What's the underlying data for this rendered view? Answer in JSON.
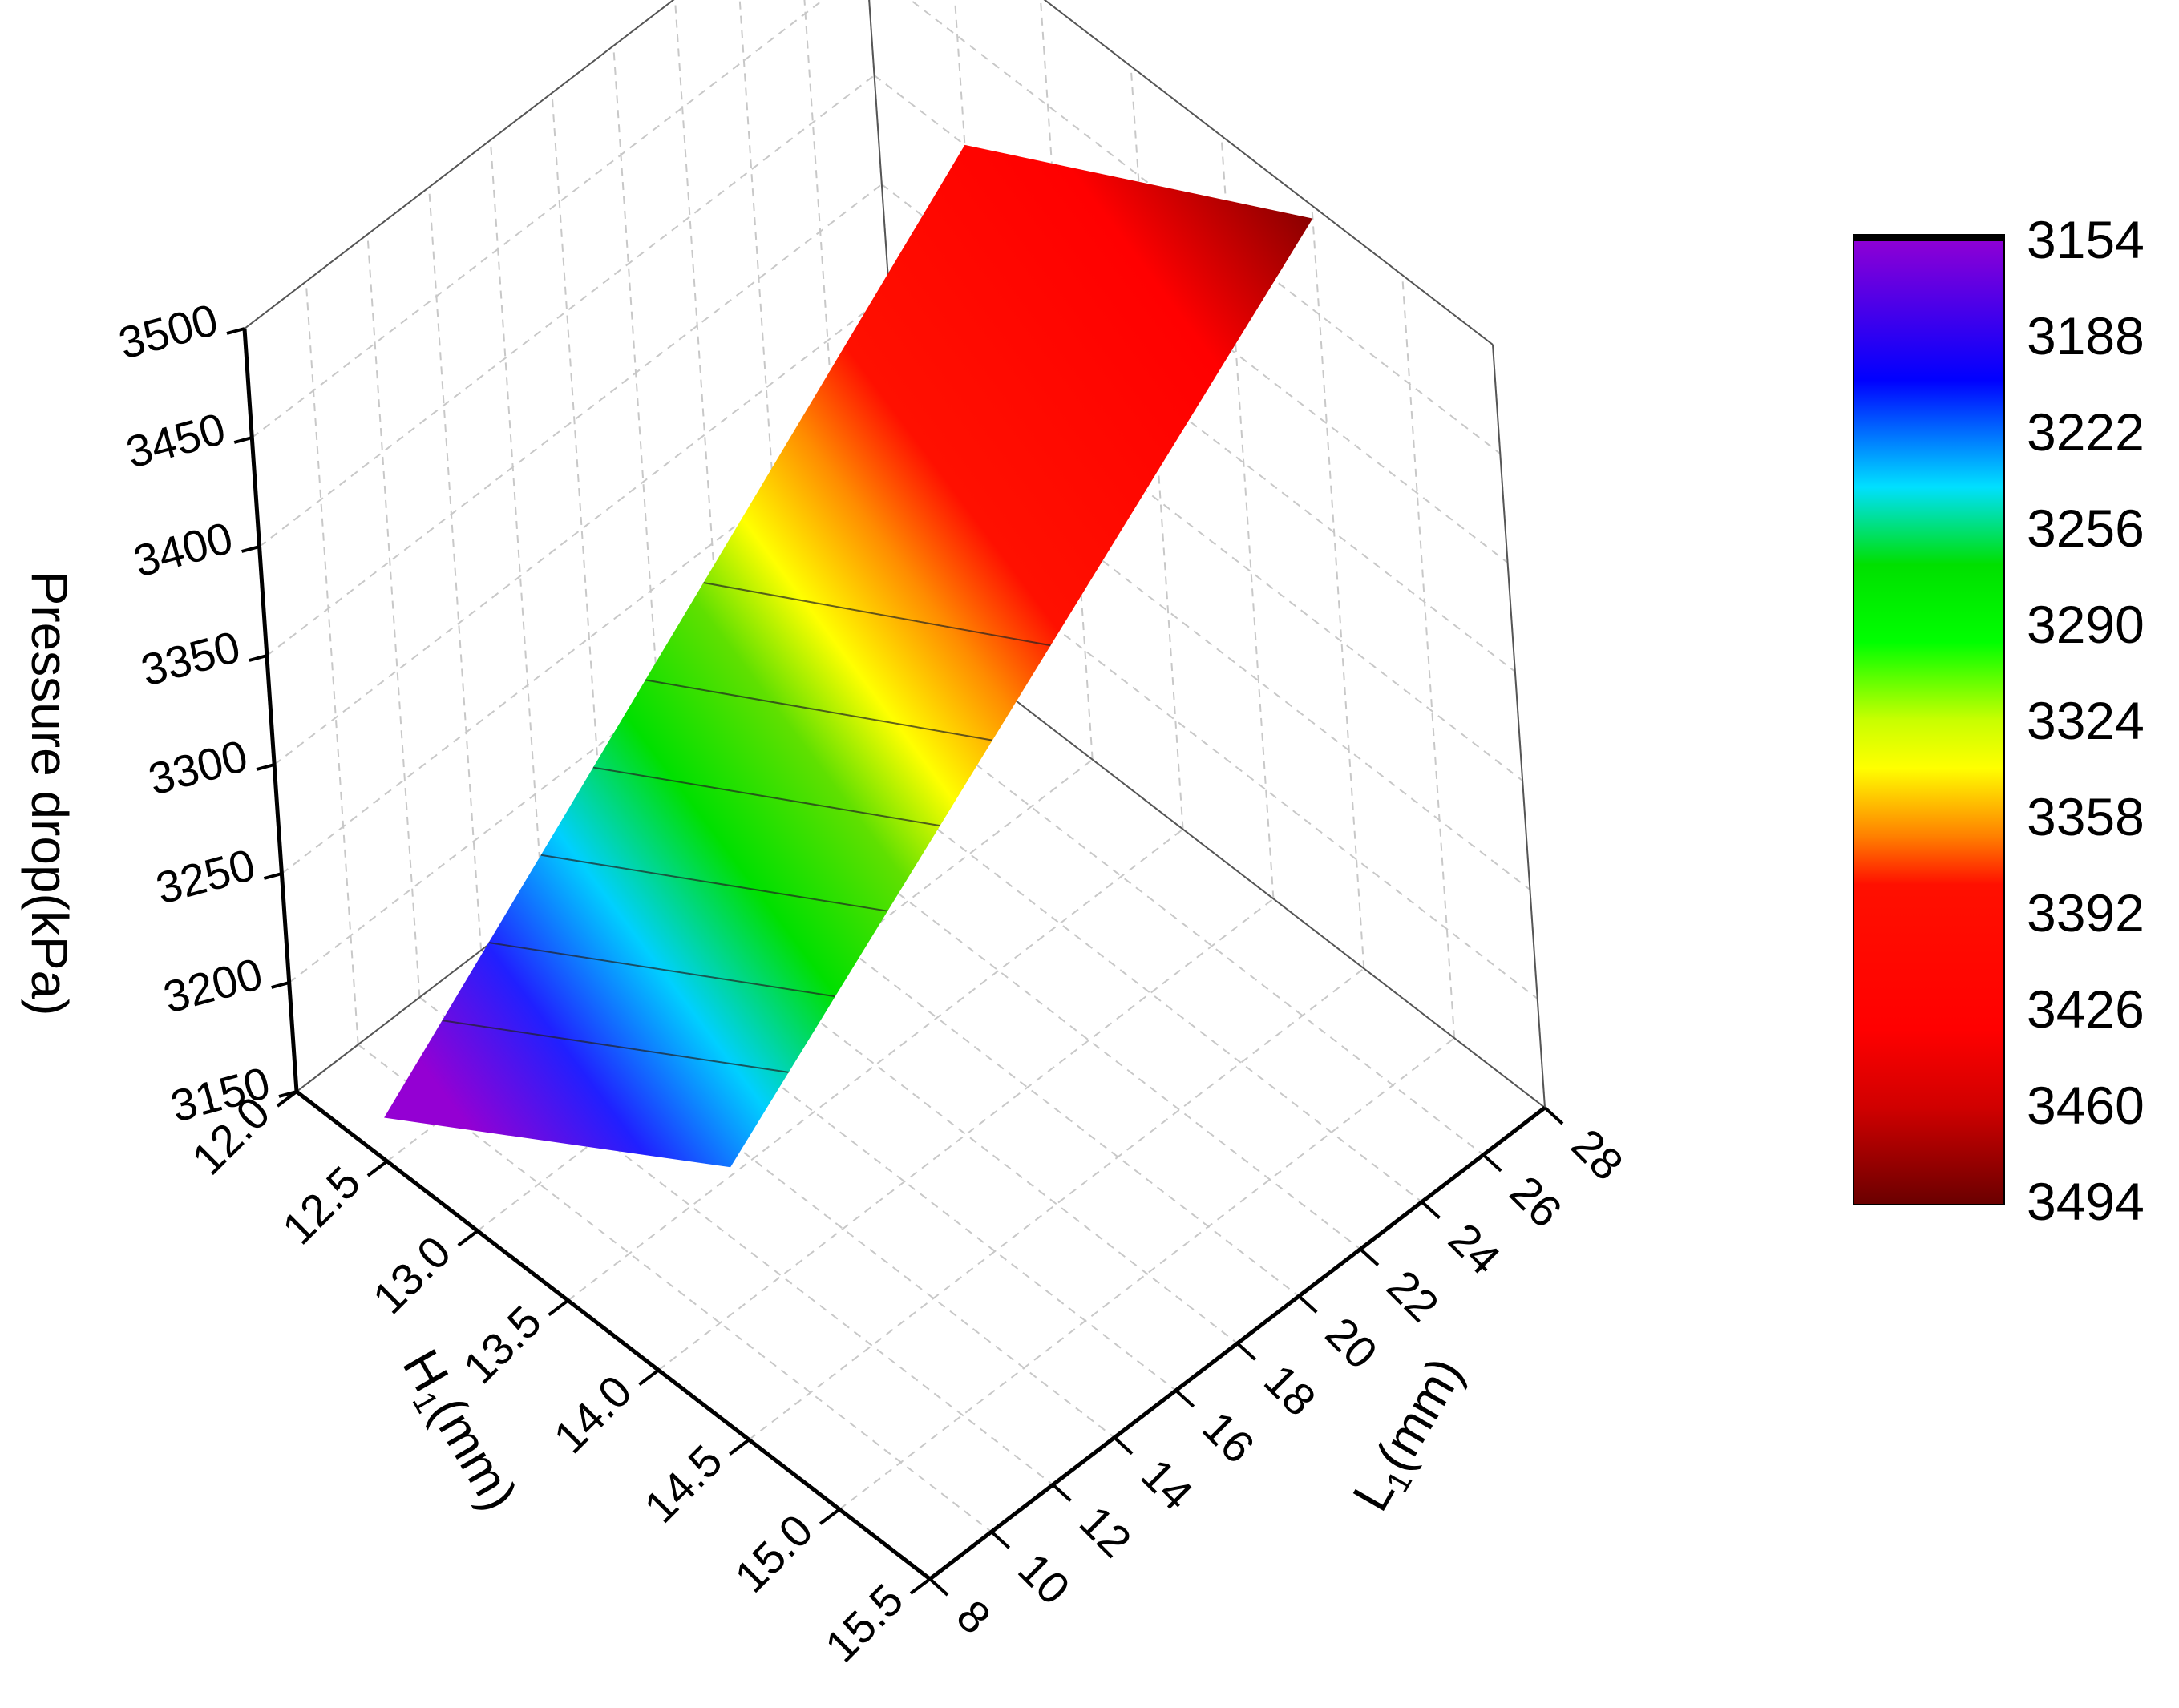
{
  "chart_data": {
    "type": "surface3d",
    "title": "",
    "xlabel": "H",
    "xlabel_sub": "1",
    "xlabel_unit": "(mm)",
    "ylabel": "L",
    "ylabel_sub": "1",
    "ylabel_unit": "(mm)",
    "zlabel": "Pressure drop(kPa)",
    "x_ticks": [
      "12.0",
      "12.5",
      "13.0",
      "13.5",
      "14.0",
      "14.5",
      "15.0",
      "15.5"
    ],
    "y_ticks": [
      "8",
      "10",
      "12",
      "14",
      "16",
      "18",
      "20",
      "22",
      "24",
      "26",
      "28"
    ],
    "z_ticks": [
      "3150",
      "3200",
      "3250",
      "3300",
      "3350",
      "3400",
      "3450",
      "3500"
    ],
    "xlim": [
      12.0,
      15.5
    ],
    "ylim": [
      8,
      28
    ],
    "zlim": [
      3150,
      3500
    ],
    "grid": true,
    "colorbar": {
      "placement": "right",
      "ticks": [
        "3154",
        "3188",
        "3222",
        "3256",
        "3290",
        "3324",
        "3358",
        "3392",
        "3426",
        "3460",
        "3494"
      ],
      "min": 3154,
      "max": 3494
    },
    "surface": {
      "h_range": [
        12.5,
        14.5
      ],
      "l_range": [
        8,
        28
      ],
      "corners": [
        {
          "h": 12.5,
          "l": 8,
          "p": 3170
        },
        {
          "h": 14.5,
          "l": 8,
          "p": 3275
        },
        {
          "h": 14.5,
          "l": 28,
          "p": 3494
        },
        {
          "h": 12.5,
          "l": 28,
          "p": 3400
        }
      ]
    }
  }
}
